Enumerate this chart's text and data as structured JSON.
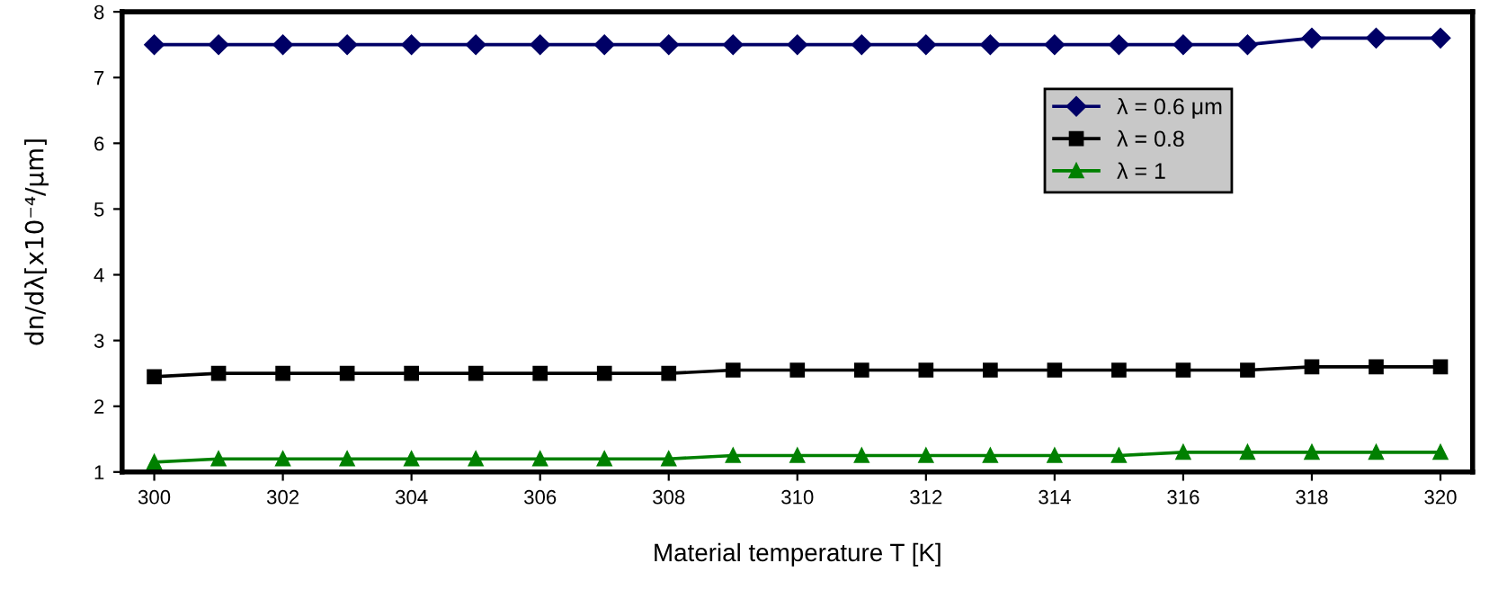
{
  "chart_data": {
    "type": "line",
    "xlabel": "Material temperature T [K]",
    "ylabel": "dn/dλ[x10⁻⁴/μm]",
    "x": [
      300,
      301,
      302,
      303,
      304,
      305,
      306,
      307,
      308,
      309,
      310,
      311,
      312,
      313,
      314,
      315,
      316,
      317,
      318,
      319,
      320
    ],
    "series": [
      {
        "name": "λ = 0.6 μm",
        "color": "#000066",
        "marker": "diamond",
        "values": [
          7.5,
          7.5,
          7.5,
          7.5,
          7.5,
          7.5,
          7.5,
          7.5,
          7.5,
          7.5,
          7.5,
          7.5,
          7.5,
          7.5,
          7.5,
          7.5,
          7.5,
          7.5,
          7.6,
          7.6,
          7.6
        ]
      },
      {
        "name": "λ = 0.8",
        "color": "#000000",
        "marker": "square",
        "values": [
          2.45,
          2.5,
          2.5,
          2.5,
          2.5,
          2.5,
          2.5,
          2.5,
          2.5,
          2.55,
          2.55,
          2.55,
          2.55,
          2.55,
          2.55,
          2.55,
          2.55,
          2.55,
          2.6,
          2.6,
          2.6
        ]
      },
      {
        "name": "λ = 1",
        "color": "#008000",
        "marker": "triangle",
        "values": [
          1.15,
          1.2,
          1.2,
          1.2,
          1.2,
          1.2,
          1.2,
          1.2,
          1.2,
          1.25,
          1.25,
          1.25,
          1.25,
          1.25,
          1.25,
          1.25,
          1.3,
          1.3,
          1.3,
          1.3,
          1.3
        ]
      }
    ],
    "xlim": [
      299.5,
      320.5
    ],
    "xticks": [
      300,
      302,
      304,
      306,
      308,
      310,
      312,
      314,
      316,
      318,
      320
    ],
    "ylim": [
      1,
      8
    ],
    "yticks": [
      1,
      2,
      3,
      4,
      5,
      6,
      7,
      8
    ],
    "grid": false,
    "legend": "right",
    "line_style": "solid"
  }
}
